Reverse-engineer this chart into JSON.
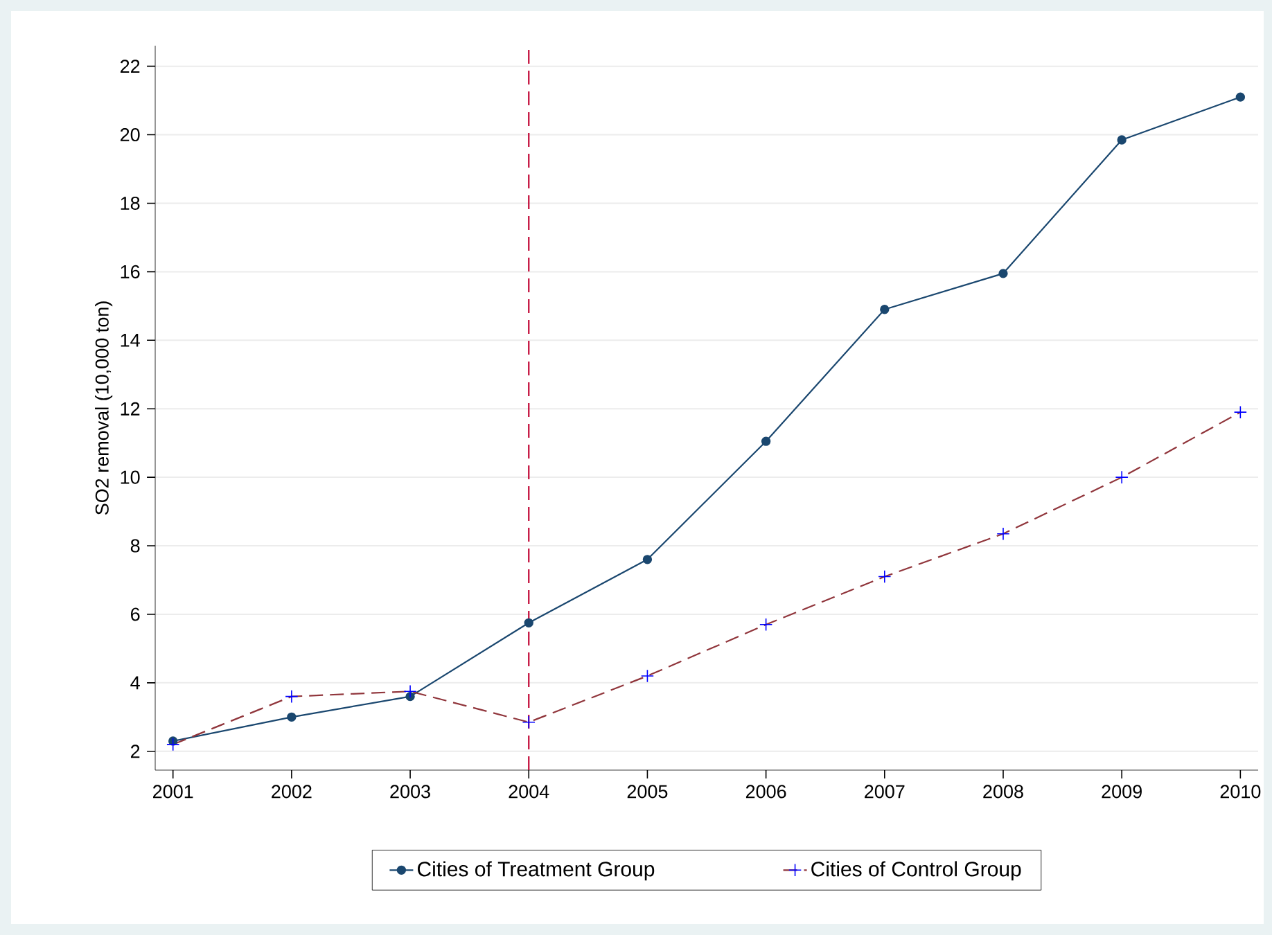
{
  "chart_data": {
    "type": "line",
    "ylabel": "SO2 removal (10,000 ton)",
    "x": [
      2001,
      2002,
      2003,
      2004,
      2005,
      2006,
      2007,
      2008,
      2009,
      2010
    ],
    "series": [
      {
        "name": "Cities of Treatment Group",
        "color": "#1a476f",
        "marker": "circle",
        "line_style": "solid",
        "values": [
          2.3,
          3.0,
          3.6,
          5.75,
          7.6,
          11.05,
          14.9,
          15.95,
          19.85,
          21.1
        ]
      },
      {
        "name": "Cities of Control Group",
        "color": "#90353b",
        "marker": "cross",
        "line_style": "dashed",
        "values": [
          2.2,
          3.6,
          3.75,
          2.85,
          4.2,
          5.7,
          7.1,
          8.35,
          10.0,
          11.9
        ]
      }
    ],
    "xlim": [
      2000.85,
      2010.15
    ],
    "ylim": [
      1.45,
      22.6
    ],
    "xticks": [
      2001,
      2002,
      2003,
      2004,
      2005,
      2006,
      2007,
      2008,
      2009,
      2010
    ],
    "yticks": [
      2,
      4,
      6,
      8,
      10,
      12,
      14,
      16,
      18,
      20,
      22
    ],
    "ref_lines": [
      {
        "axis": "x",
        "value": 2004,
        "color": "#c10534",
        "line_style": "dashed"
      }
    ],
    "grid": "y",
    "legend": "bottom"
  }
}
